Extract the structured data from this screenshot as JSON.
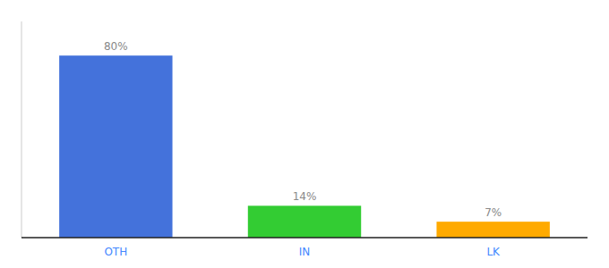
{
  "chart_data": {
    "type": "bar",
    "categories": [
      "OTH",
      "IN",
      "LK"
    ],
    "values": [
      80,
      14,
      7
    ],
    "value_labels": [
      "80%",
      "14%",
      "7%"
    ],
    "colors": [
      "#4472db",
      "#33cc33",
      "#ffaa00"
    ],
    "ylim": [
      0,
      95
    ],
    "grid": false,
    "data_labels": true,
    "tick_labels": "x"
  }
}
